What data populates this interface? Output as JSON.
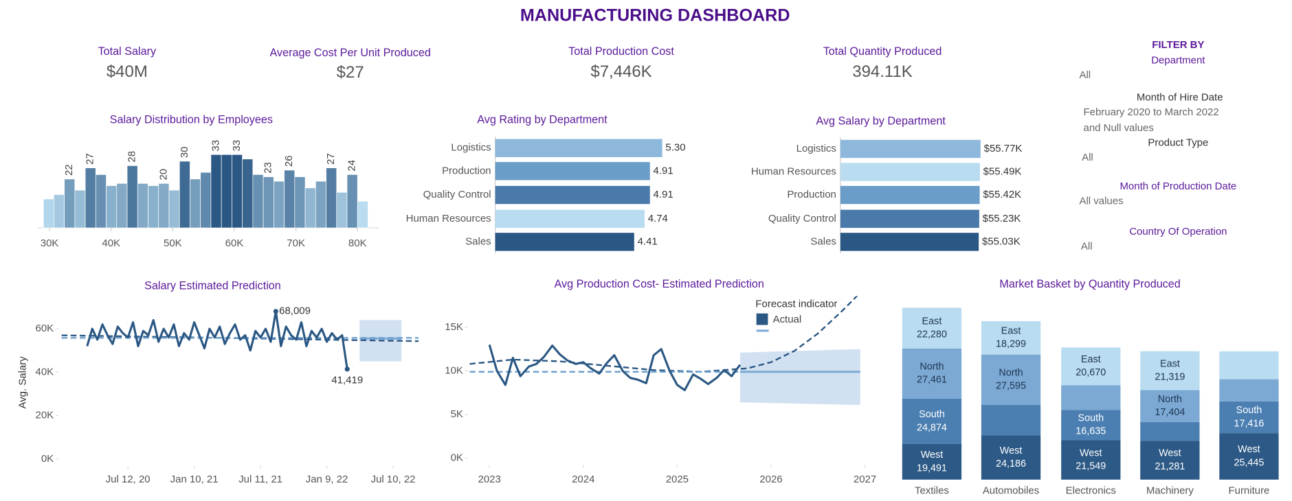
{
  "title": "MANUFACTURING DASHBOARD",
  "kpis": [
    {
      "label": "Total Salary",
      "value": "$40M"
    },
    {
      "label": "Average Cost Per Unit Produced",
      "value": "$27"
    },
    {
      "label": "Total Production Cost",
      "value": "$7,446K"
    },
    {
      "label": "Total Quantity Produced",
      "value": "394.11K"
    }
  ],
  "filter_heading": "FILTER BY",
  "filters": [
    {
      "label": "Department",
      "value": [
        "All"
      ]
    },
    {
      "label": "Month of Hire Date",
      "value": [
        "February 2020 to March 2022",
        "and Null values"
      ]
    },
    {
      "label": "Product Type",
      "value": [
        "All"
      ]
    },
    {
      "label": "Month of Production Date",
      "value": [
        "All values"
      ]
    },
    {
      "label": "Country Of Operation",
      "value": [
        "All"
      ]
    }
  ],
  "chart_data": [
    {
      "type": "histogram",
      "title": "Salary Distribution by Employees",
      "bins": [
        29000,
        30700,
        32400,
        34100,
        35800,
        37500,
        39200,
        40900,
        42600,
        44300,
        46000,
        47700,
        49400,
        51100,
        52800,
        54500,
        56200,
        57900,
        59600,
        61300,
        63000,
        64700,
        66400,
        68100,
        69800,
        71500,
        73200,
        74900,
        76600,
        78300,
        80000,
        81700
      ],
      "values": [
        13,
        15,
        22,
        17,
        27,
        24,
        19,
        20,
        28,
        20,
        19,
        20,
        17,
        30,
        22,
        25,
        33,
        33,
        33,
        31,
        24,
        23,
        21,
        26,
        23,
        18,
        21,
        27,
        16,
        24,
        12
      ],
      "value_labels": [
        null,
        null,
        "22",
        null,
        "27",
        null,
        null,
        null,
        "28",
        null,
        null,
        "20",
        null,
        "30",
        null,
        null,
        "33",
        null,
        "33",
        null,
        null,
        "23",
        null,
        "26",
        null,
        null,
        null,
        "27",
        null,
        "24",
        null
      ],
      "color_range": [
        "#b9dcf0",
        "#2a5783"
      ],
      "xlim": [
        28000,
        83500
      ],
      "xticks": [
        {
          "value": 30000,
          "label": "30K"
        },
        {
          "value": 40000,
          "label": "40K"
        },
        {
          "value": 50000,
          "label": "50K"
        },
        {
          "value": 60000,
          "label": "60K"
        },
        {
          "value": 70000,
          "label": "70K"
        },
        {
          "value": 80000,
          "label": "80K"
        }
      ],
      "ylim": [
        0,
        40
      ]
    },
    {
      "type": "hbar",
      "title": "Avg Rating by Department",
      "categories": [
        "Logistics",
        "Production",
        "Quality Control",
        "Human Resources",
        "Sales"
      ],
      "values": [
        5.3,
        4.91,
        4.91,
        4.74,
        4.41
      ],
      "value_labels": [
        "5.30",
        "4.91",
        "4.91",
        "4.74",
        "4.41"
      ],
      "colors": [
        "#8db8dc",
        "#6a9dc8",
        "#4a7aaa",
        "#b9dcf0",
        "#2a5783"
      ],
      "xlim": [
        0,
        5.7
      ]
    },
    {
      "type": "hbar",
      "title": "Avg Salary by Department",
      "categories": [
        "Logistics",
        "Human Resources",
        "Production",
        "Quality Control",
        "Sales"
      ],
      "values": [
        55770,
        55490,
        55420,
        55230,
        55030
      ],
      "value_labels": [
        "$55.77K",
        "$55.49K",
        "$55.42K",
        "$55.23K",
        "$55.03K"
      ],
      "colors": [
        "#8db8dc",
        "#b9dcf0",
        "#6a9dc8",
        "#4a7aaa",
        "#2a5783"
      ],
      "xlim": [
        0,
        59000
      ]
    },
    {
      "type": "line",
      "title": "Salary Estimated Prediction",
      "ylabel": "Avg. Salary",
      "x": [
        "2020-03-22",
        "2020-04-05",
        "2020-04-19",
        "2020-05-03",
        "2020-05-17",
        "2020-05-31",
        "2020-06-14",
        "2020-06-28",
        "2020-07-12",
        "2020-07-26",
        "2020-08-09",
        "2020-08-23",
        "2020-09-06",
        "2020-09-20",
        "2020-10-04",
        "2020-10-18",
        "2020-11-01",
        "2020-11-15",
        "2020-11-29",
        "2020-12-13",
        "2020-12-27",
        "2021-01-10",
        "2021-01-24",
        "2021-02-07",
        "2021-02-21",
        "2021-03-07",
        "2021-03-21",
        "2021-04-04",
        "2021-04-18",
        "2021-05-02",
        "2021-05-16",
        "2021-05-30",
        "2021-06-13",
        "2021-06-27",
        "2021-07-11",
        "2021-07-25",
        "2021-08-08",
        "2021-08-22",
        "2021-09-05",
        "2021-09-19",
        "2021-10-03",
        "2021-10-17",
        "2021-10-31",
        "2021-11-14",
        "2021-11-28",
        "2021-12-12",
        "2021-12-26",
        "2022-01-09",
        "2022-01-23",
        "2022-02-06",
        "2022-02-20",
        "2022-03-06"
      ],
      "series": [
        {
          "color": "#2a5783",
          "values": [
            52000,
            60000,
            55000,
            62000,
            57000,
            53000,
            61000,
            58000,
            56000,
            63000,
            52000,
            59000,
            57000,
            64000,
            54000,
            60000,
            56000,
            62000,
            52000,
            58000,
            55000,
            63000,
            57000,
            51000,
            60000,
            56000,
            61000,
            53000,
            58000,
            62000,
            55000,
            57000,
            50000,
            59000,
            56000,
            60000,
            54000,
            68009,
            52000,
            61000,
            57000,
            55000,
            63000,
            52000,
            59000,
            56000,
            60000,
            54000,
            58000,
            55000,
            57000,
            41419
          ],
          "value_labels": [
            null,
            null,
            null,
            null,
            null,
            null,
            null,
            null,
            null,
            null,
            null,
            null,
            null,
            null,
            null,
            null,
            null,
            null,
            null,
            null,
            null,
            null,
            null,
            null,
            null,
            null,
            null,
            null,
            null,
            null,
            null,
            null,
            null,
            null,
            null,
            null,
            null,
            "68,009",
            null,
            null,
            null,
            null,
            null,
            null,
            null,
            null,
            null,
            null,
            null,
            null,
            null,
            "41,419"
          ]
        }
      ],
      "trend_lines": [
        {
          "color": "#2a5783",
          "x": [
            "2020-01-12",
            "2022-09-18"
          ],
          "values": [
            57000,
            54300
          ]
        },
        {
          "color": "#6fa0cf",
          "x": [
            "2020-01-12",
            "2022-09-18"
          ],
          "values": [
            55800,
            55800
          ]
        }
      ],
      "forecast": {
        "color": "#c9dcee",
        "line_color": "#7aa9d4",
        "x": [
          "2022-04-09",
          "2022-08-02"
        ],
        "low": [
          45000,
          45000
        ],
        "high": [
          64000,
          64000
        ],
        "value": 55500
      },
      "xlim": [
        "2019-11-06",
        "2022-09-18"
      ],
      "xticks": [
        {
          "value": "2020-07-12",
          "label": "Jul 12, 20"
        },
        {
          "value": "2021-01-10",
          "label": "Jan 10, 21"
        },
        {
          "value": "2021-07-11",
          "label": "Jul 11, 21"
        },
        {
          "value": "2022-01-09",
          "label": "Jan 9, 22"
        },
        {
          "value": "2022-07-10",
          "label": "Jul 10, 22"
        }
      ],
      "ylim": [
        0,
        72000
      ],
      "yticks": [
        {
          "value": 0,
          "label": "0K"
        },
        {
          "value": 20000,
          "label": "20K"
        },
        {
          "value": 40000,
          "label": "40K"
        },
        {
          "value": 60000,
          "label": "60K"
        }
      ]
    },
    {
      "type": "line",
      "title": "Avg Production Cost- Estimated Prediction",
      "legend_title": "Forecast indicator",
      "x": [
        2023.0,
        2023.08,
        2023.17,
        2023.25,
        2023.33,
        2023.42,
        2023.5,
        2023.58,
        2023.67,
        2023.75,
        2023.83,
        2023.92,
        2024.0,
        2024.08,
        2024.17,
        2024.25,
        2024.33,
        2024.42,
        2024.5,
        2024.58,
        2024.67,
        2024.75,
        2024.83,
        2024.92,
        2025.0,
        2025.08,
        2025.17,
        2025.25,
        2025.33,
        2025.42,
        2025.5,
        2025.58,
        2025.67
      ],
      "series": [
        {
          "name": "Actual",
          "color": "#2a5783",
          "values": [
            13000,
            10000,
            8400,
            11500,
            9400,
            10500,
            10800,
            11600,
            12900,
            11900,
            11200,
            10800,
            11000,
            10300,
            9700,
            10900,
            11800,
            10000,
            9200,
            9000,
            8600,
            11800,
            12500,
            10000,
            8400,
            7800,
            9600,
            9100,
            8500,
            9200,
            10100,
            9400,
            10700
          ]
        }
      ],
      "trend_lines": [
        {
          "color": "#2a5783",
          "x": [
            2022.79,
            2023.25,
            2023.75,
            2024.25,
            2024.75,
            2025.25,
            2025.75,
            2026.0,
            2026.25,
            2026.5,
            2026.75,
            2027.0
          ],
          "values": [
            10800,
            11300,
            11100,
            10600,
            10100,
            9900,
            10300,
            11000,
            12300,
            14300,
            16800,
            19500
          ]
        },
        {
          "color": "#6fa0cf",
          "x": [
            2022.79,
            2025.67
          ],
          "values": [
            9900,
            9900
          ]
        }
      ],
      "forecast": {
        "color": "#c9dcee",
        "line_color": "#7aa9d4",
        "x": [
          2025.67,
          2026.95
        ],
        "low": [
          6400,
          6100
        ],
        "high": [
          12100,
          12500
        ],
        "value": 9900
      },
      "xlim": [
        2022.79,
        2027.16
      ],
      "xticks": [
        2023,
        2024,
        2025,
        2026,
        2027
      ],
      "ylim": [
        0,
        18000
      ],
      "yticks": [
        {
          "value": 0,
          "label": "0K"
        },
        {
          "value": 5000,
          "label": "5K"
        },
        {
          "value": 10000,
          "label": "10K"
        },
        {
          "value": 15000,
          "label": "15K"
        }
      ]
    },
    {
      "type": "stacked_bar",
      "title": "Market Basket by Quantity Produced",
      "categories": [
        "Textiles",
        "Automobiles",
        "Electronics",
        "Machinery",
        "Furniture"
      ],
      "series": [
        {
          "name": "West",
          "color": "#2c5985",
          "text_color": "#ffffff",
          "values": [
            19491,
            24186,
            21549,
            21281,
            25445
          ],
          "value_labels": [
            "19,491",
            "24,186",
            "21,549",
            "21,281",
            "25,445"
          ]
        },
        {
          "name": "South",
          "color": "#4b7fb2",
          "text_color": "#ffffff",
          "values": [
            24874,
            16700,
            16635,
            10300,
            17416
          ],
          "value_labels": [
            "24,874",
            null,
            "16,635",
            null,
            "17,416"
          ]
        },
        {
          "name": "North",
          "color": "#7ba9d4",
          "text_color": "#1f3550",
          "values": [
            27461,
            27595,
            13500,
            17404,
            12100
          ],
          "value_labels": [
            "27,461",
            "27,595",
            null,
            "17,404",
            null
          ]
        },
        {
          "name": "East",
          "color": "#b9dcf0",
          "text_color": "#1f3550",
          "values": [
            22280,
            18299,
            20670,
            21319,
            15300
          ],
          "value_labels": [
            "22,280",
            "18,299",
            "20,670",
            "21,319",
            null
          ]
        }
      ],
      "ylim": [
        0,
        100000
      ]
    }
  ]
}
